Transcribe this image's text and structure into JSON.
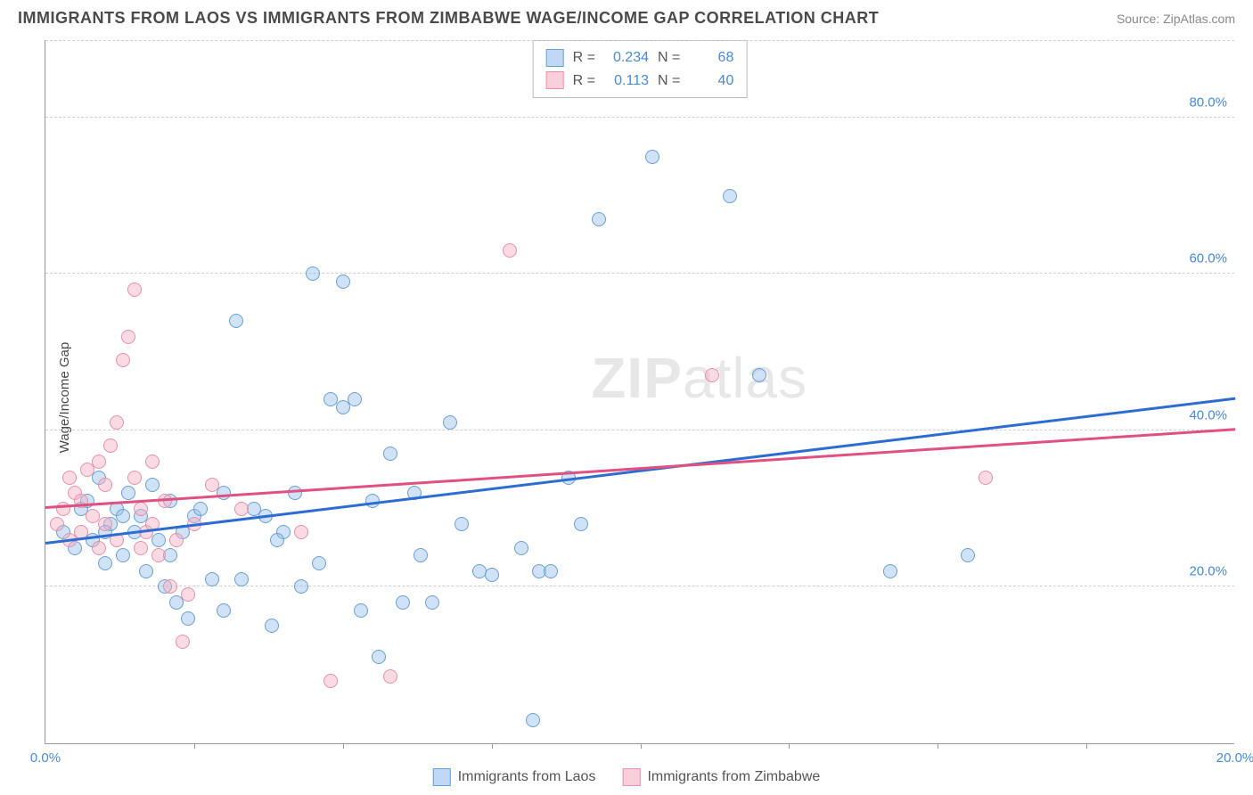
{
  "title": "IMMIGRANTS FROM LAOS VS IMMIGRANTS FROM ZIMBABWE WAGE/INCOME GAP CORRELATION CHART",
  "source": "Source: ZipAtlas.com",
  "ylabel": "Wage/Income Gap",
  "watermark_bold": "ZIP",
  "watermark_rest": "atlas",
  "chart": {
    "type": "scatter",
    "xlim": [
      0,
      20
    ],
    "ylim": [
      0,
      90
    ],
    "yticks": [
      20,
      40,
      60,
      80
    ],
    "ytick_labels": [
      "20.0%",
      "40.0%",
      "60.0%",
      "80.0%"
    ],
    "xticks": [
      0,
      20
    ],
    "xtick_labels": [
      "0.0%",
      "20.0%"
    ],
    "xtick_minor": [
      2.5,
      5,
      7.5,
      10,
      12.5,
      15,
      17.5
    ],
    "grid_color": "#d0d0d0",
    "background_color": "#ffffff",
    "marker_radius": 8,
    "series": {
      "laos": {
        "label": "Immigrants from Laos",
        "color_fill": "rgba(150,190,235,0.45)",
        "color_stroke": "#6a9fd4",
        "trend_color": "#2d6cd0",
        "trend": {
          "x1": 0,
          "y1": 25.5,
          "x2": 20,
          "y2": 44
        },
        "stats": {
          "R": "0.234",
          "N": "68"
        },
        "points": [
          [
            0.3,
            27
          ],
          [
            0.5,
            25
          ],
          [
            0.6,
            30
          ],
          [
            0.8,
            26
          ],
          [
            0.9,
            34
          ],
          [
            1.0,
            23
          ],
          [
            1.1,
            28
          ],
          [
            1.2,
            30
          ],
          [
            1.3,
            24
          ],
          [
            1.4,
            32
          ],
          [
            1.5,
            27
          ],
          [
            1.6,
            29
          ],
          [
            1.7,
            22
          ],
          [
            1.8,
            33
          ],
          [
            1.9,
            26
          ],
          [
            2.0,
            20
          ],
          [
            2.1,
            31
          ],
          [
            2.2,
            18
          ],
          [
            2.3,
            27
          ],
          [
            2.4,
            16
          ],
          [
            2.5,
            29
          ],
          [
            2.6,
            30
          ],
          [
            2.8,
            21
          ],
          [
            3.0,
            32
          ],
          [
            3.0,
            17
          ],
          [
            3.2,
            54
          ],
          [
            3.3,
            21
          ],
          [
            3.5,
            30
          ],
          [
            3.7,
            29
          ],
          [
            3.8,
            15
          ],
          [
            4.0,
            27
          ],
          [
            4.2,
            32
          ],
          [
            4.3,
            20
          ],
          [
            4.5,
            60
          ],
          [
            4.8,
            44
          ],
          [
            5.0,
            43
          ],
          [
            5.0,
            59
          ],
          [
            5.2,
            44
          ],
          [
            5.3,
            17
          ],
          [
            5.5,
            31
          ],
          [
            5.6,
            11
          ],
          [
            5.8,
            37
          ],
          [
            6.0,
            18
          ],
          [
            6.2,
            32
          ],
          [
            6.3,
            24
          ],
          [
            6.5,
            18
          ],
          [
            6.8,
            41
          ],
          [
            7.0,
            28
          ],
          [
            7.3,
            22
          ],
          [
            7.5,
            21.5
          ],
          [
            8.0,
            25
          ],
          [
            8.2,
            3
          ],
          [
            8.3,
            22
          ],
          [
            8.5,
            22
          ],
          [
            8.8,
            34
          ],
          [
            9.0,
            28
          ],
          [
            9.3,
            67
          ],
          [
            10.2,
            75
          ],
          [
            11.5,
            70
          ],
          [
            12.0,
            47
          ],
          [
            14.2,
            22
          ],
          [
            15.5,
            24
          ],
          [
            1.0,
            27
          ],
          [
            1.3,
            29
          ],
          [
            0.7,
            31
          ],
          [
            2.1,
            24
          ],
          [
            3.9,
            26
          ],
          [
            4.6,
            23
          ]
        ]
      },
      "zimbabwe": {
        "label": "Immigrants from Zimbabwe",
        "color_fill": "rgba(245,175,195,0.45)",
        "color_stroke": "#e890a8",
        "trend_color": "#e05080",
        "trend": {
          "x1": 0,
          "y1": 30,
          "x2": 20,
          "y2": 40
        },
        "stats": {
          "R": "0.113",
          "N": "40"
        },
        "points": [
          [
            0.2,
            28
          ],
          [
            0.3,
            30
          ],
          [
            0.4,
            26
          ],
          [
            0.5,
            32
          ],
          [
            0.6,
            27
          ],
          [
            0.7,
            35
          ],
          [
            0.8,
            29
          ],
          [
            0.9,
            25
          ],
          [
            1.0,
            33
          ],
          [
            1.1,
            38
          ],
          [
            1.2,
            41
          ],
          [
            1.3,
            49
          ],
          [
            1.4,
            52
          ],
          [
            1.5,
            58
          ],
          [
            1.5,
            34
          ],
          [
            1.6,
            30
          ],
          [
            1.7,
            27
          ],
          [
            1.8,
            36
          ],
          [
            1.9,
            24
          ],
          [
            2.0,
            31
          ],
          [
            2.1,
            20
          ],
          [
            2.2,
            26
          ],
          [
            2.3,
            13
          ],
          [
            2.4,
            19
          ],
          [
            2.5,
            28
          ],
          [
            2.8,
            33
          ],
          [
            3.3,
            30
          ],
          [
            4.3,
            27
          ],
          [
            4.8,
            8
          ],
          [
            5.8,
            8.5
          ],
          [
            7.8,
            63
          ],
          [
            11.2,
            47
          ],
          [
            15.8,
            34
          ],
          [
            0.4,
            34
          ],
          [
            0.6,
            31
          ],
          [
            0.9,
            36
          ],
          [
            1.0,
            28
          ],
          [
            1.2,
            26
          ],
          [
            1.6,
            25
          ],
          [
            1.8,
            28
          ]
        ]
      }
    }
  },
  "stats_legend": {
    "r_label": "R =",
    "n_label": "N ="
  }
}
